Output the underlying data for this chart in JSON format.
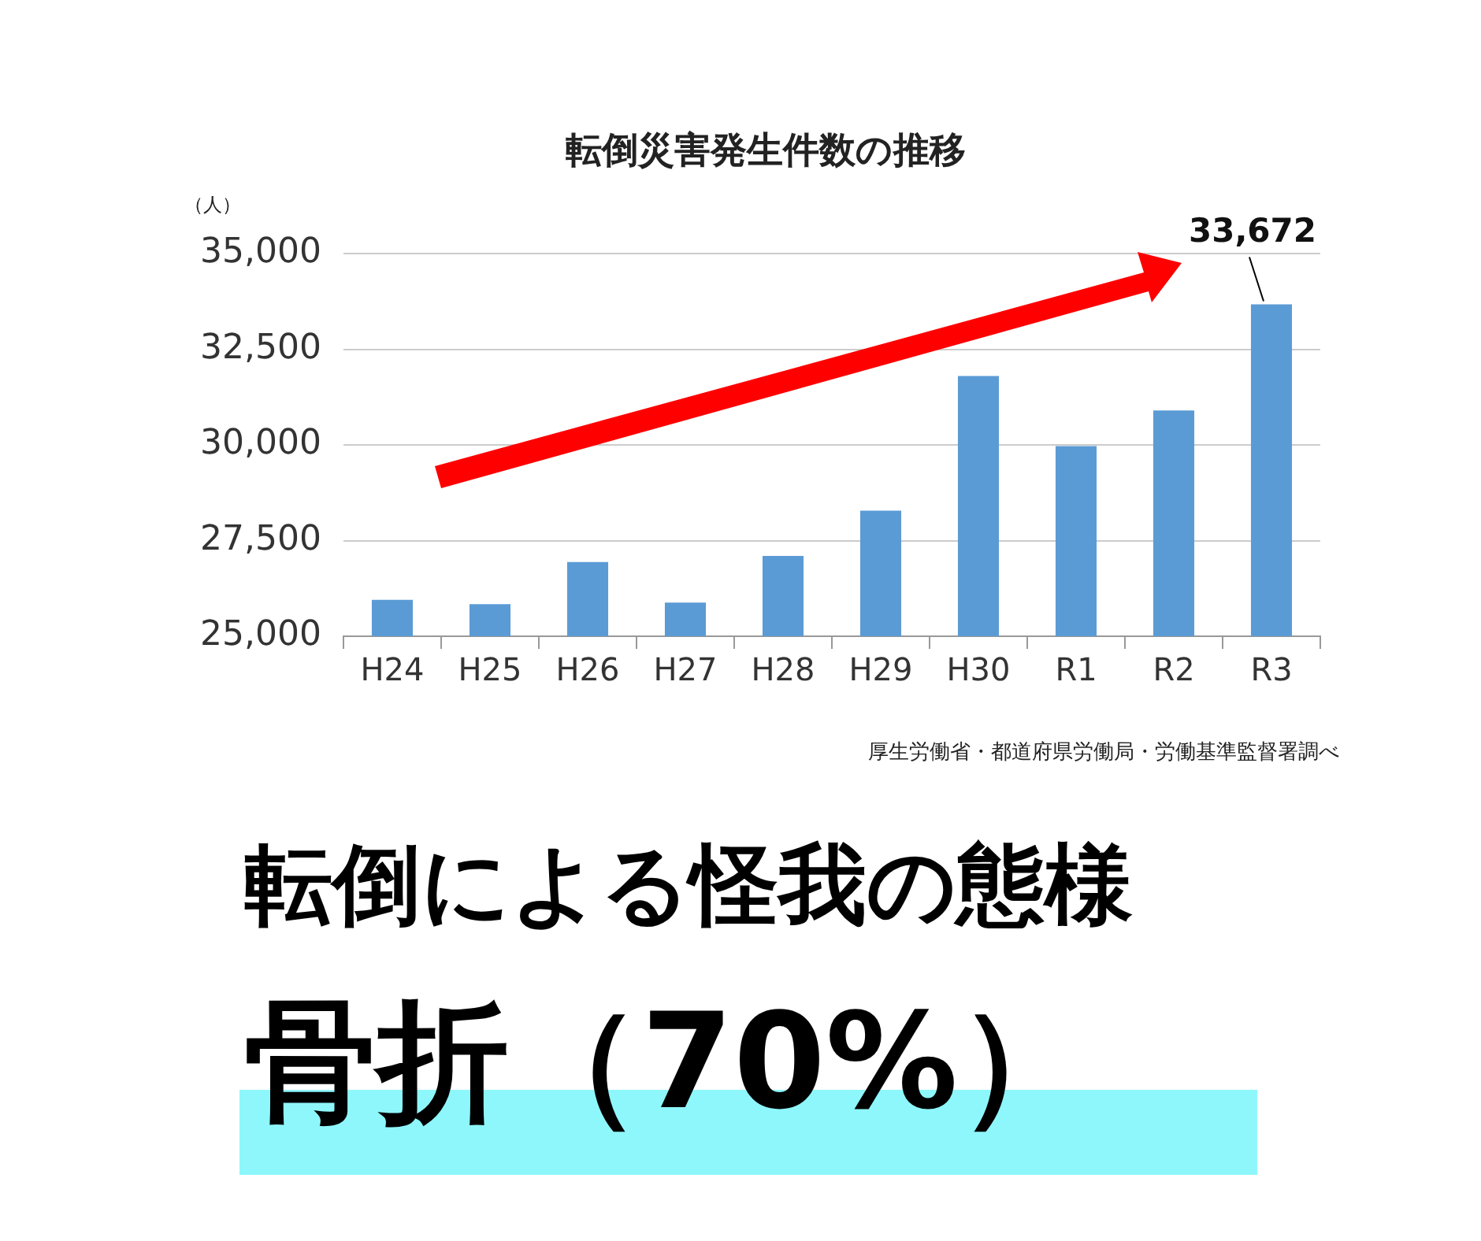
{
  "chart_data": {
    "type": "bar",
    "title": "転倒災害発生件数の推移",
    "ylabel": "（人）",
    "categories": [
      "H24",
      "H25",
      "H26",
      "H27",
      "H28",
      "H29",
      "H30",
      "R1",
      "R2",
      "R3"
    ],
    "values": [
      25950,
      25840,
      26940,
      25880,
      27100,
      28280,
      31800,
      29970,
      30900,
      33672
    ],
    "value_labels": [
      null,
      null,
      null,
      null,
      null,
      null,
      null,
      null,
      null,
      "33,672"
    ],
    "color": "#5b9bd5",
    "ylim": [
      25000,
      35000
    ],
    "yticks": [
      {
        "value": 25000,
        "label": "25,000"
      },
      {
        "value": 27500,
        "label": "27,500"
      },
      {
        "value": 30000,
        "label": "30,000"
      },
      {
        "value": 32500,
        "label": "32,500"
      },
      {
        "value": 35000,
        "label": "35,000"
      }
    ],
    "grid": "y",
    "legend": false,
    "annotations": [
      "厚生労働省・都道府県労働局・労働基準監督署調べ",
      "転倒による怪我の態様",
      "骨折（70%）"
    ]
  }
}
